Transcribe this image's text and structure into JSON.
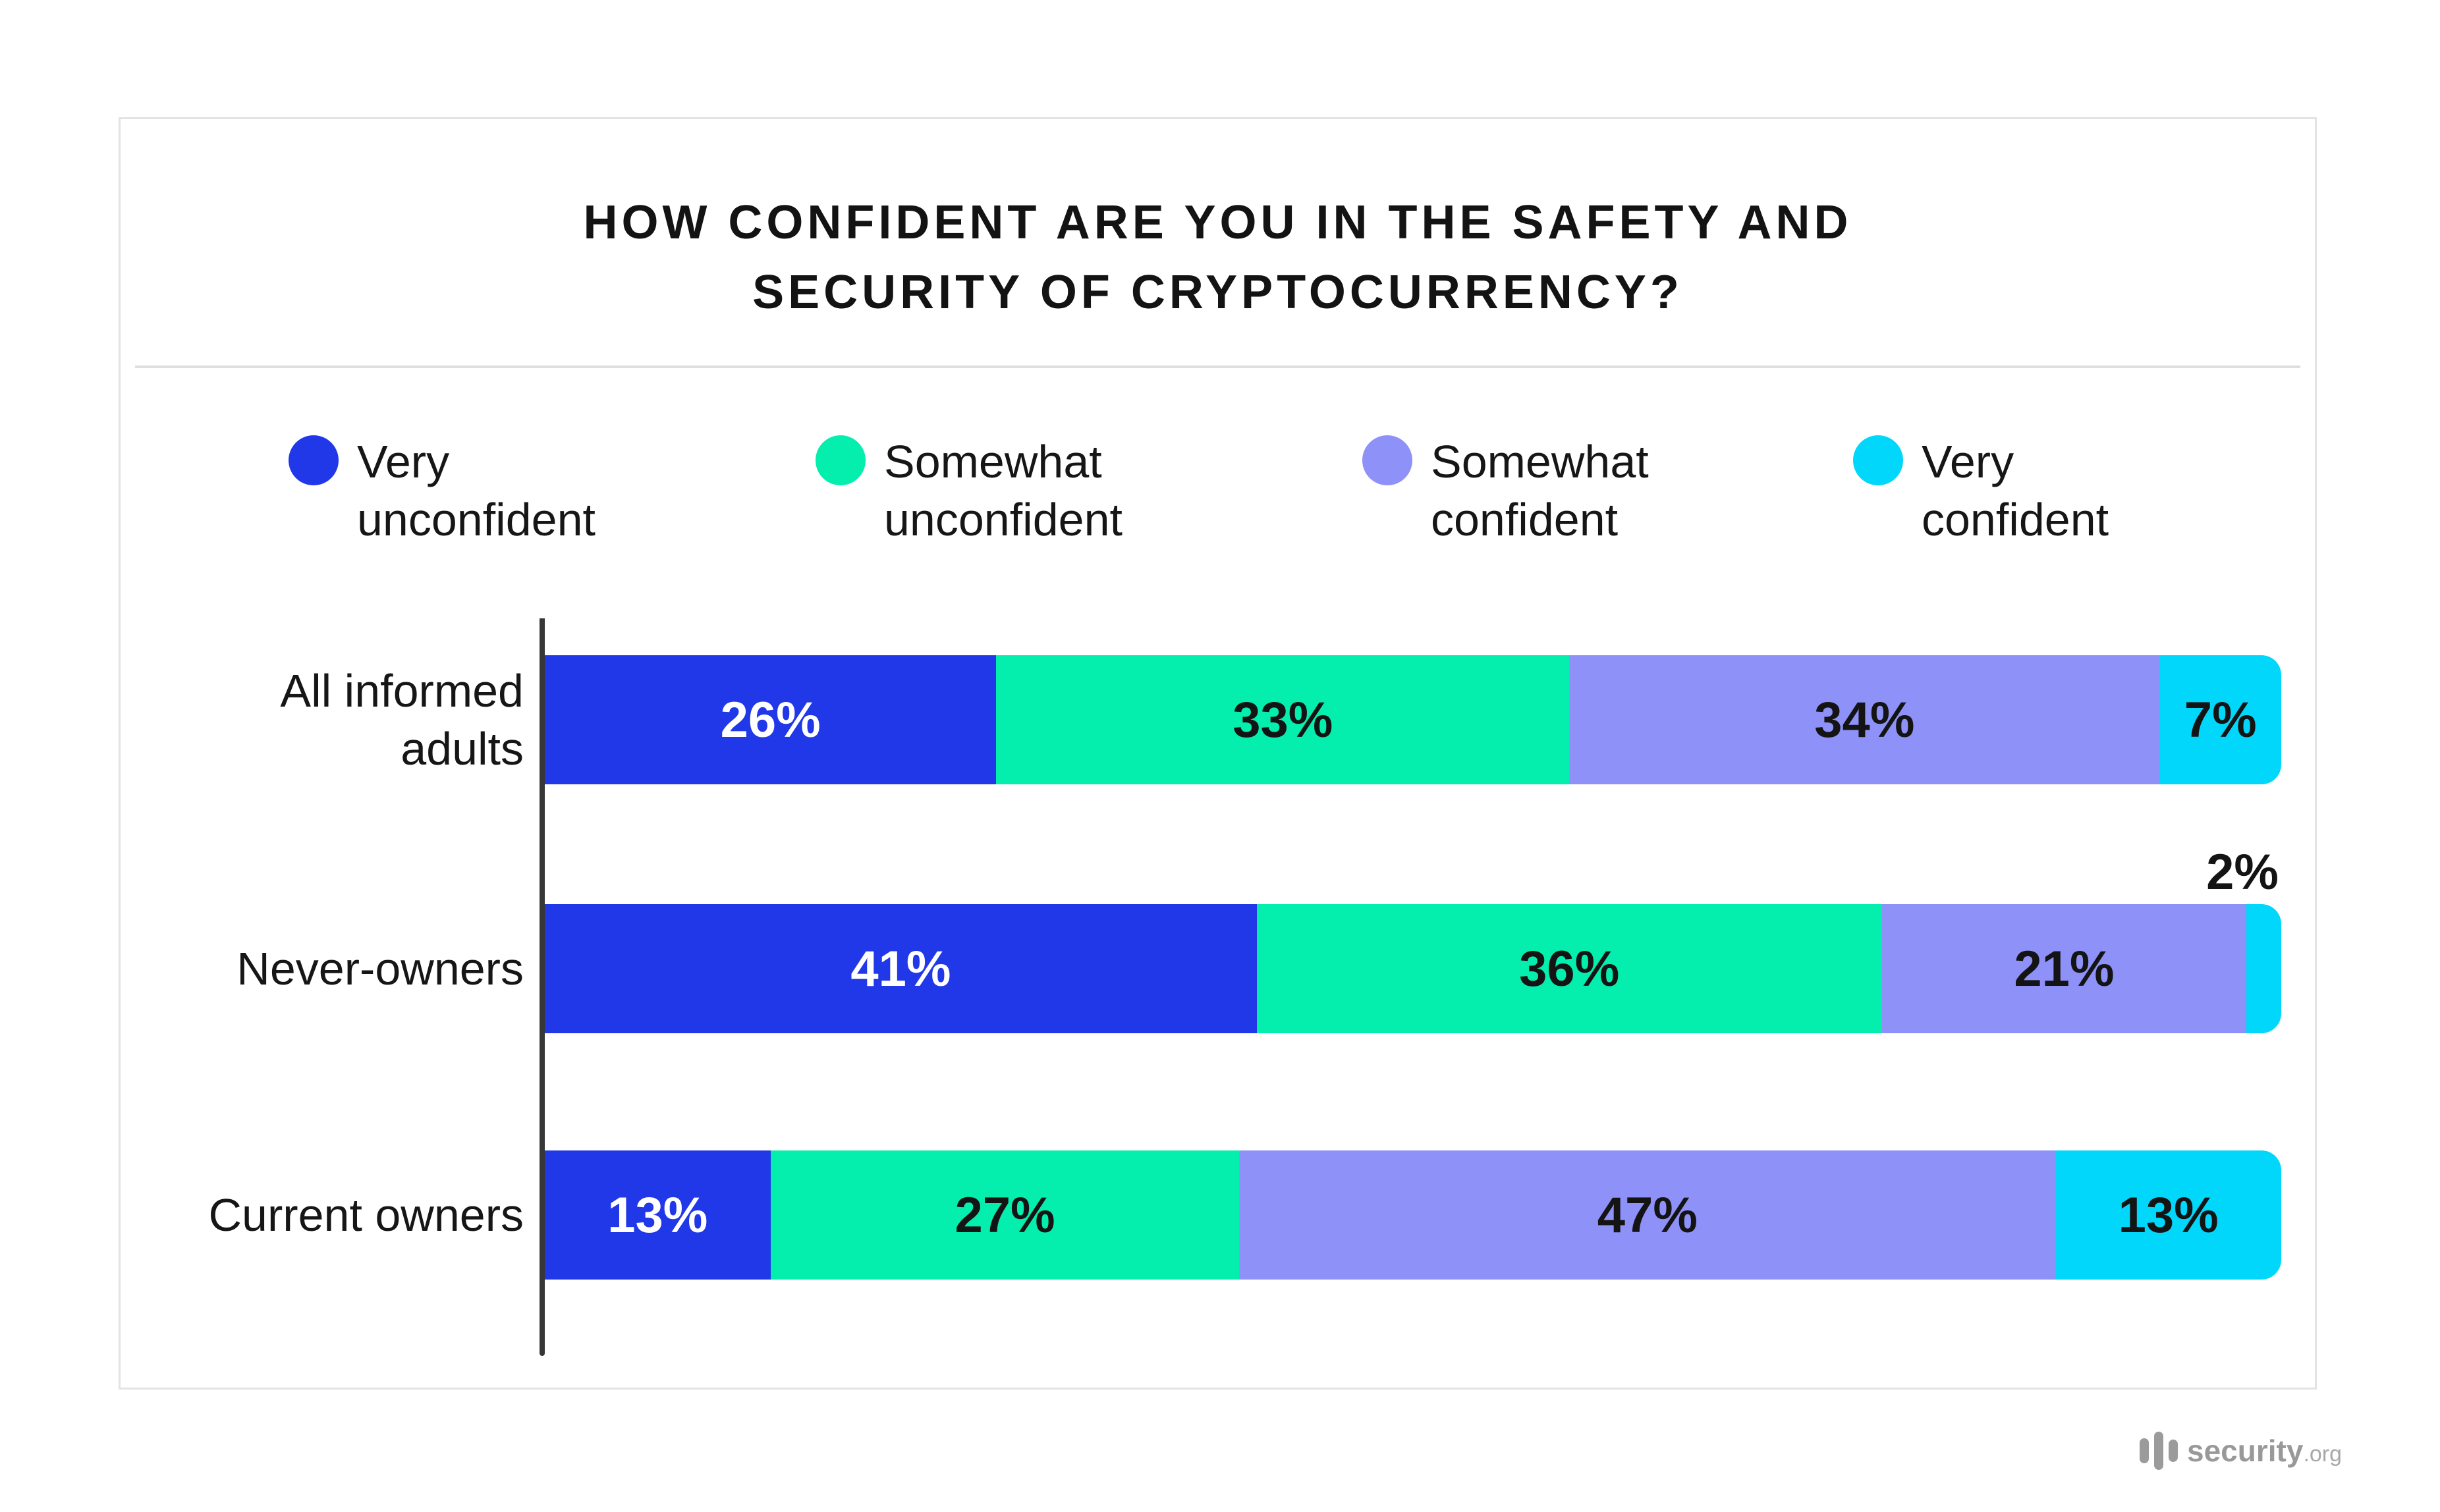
{
  "card": {
    "title_lines": [
      "HOW CONFIDENT ARE YOU IN THE SAFETY AND",
      "SECURITY OF CRYPTOCURRENCY?"
    ],
    "border_color": "#e3e3e3"
  },
  "chart_data": {
    "type": "bar",
    "stacked": true,
    "orientation": "horizontal",
    "title": "HOW CONFIDENT ARE YOU IN THE SAFETY AND SECURITY OF CRYPTOCURRENCY?",
    "unit": "%",
    "xlim": [
      0,
      100
    ],
    "grid": false,
    "legend_position": "top",
    "axis_color": "#373737",
    "categories": [
      "All informed adults",
      "Never-owners",
      "Current owners"
    ],
    "category_label_lines": [
      [
        "All informed",
        "adults"
      ],
      [
        "Never-owners"
      ],
      [
        "Current owners"
      ]
    ],
    "series": [
      {
        "name": "Very unconfident",
        "legend_lines": [
          "Very",
          "unconfident"
        ],
        "color": "#2038e8",
        "label_text_color": "#ffffff",
        "values": [
          26,
          41,
          13
        ]
      },
      {
        "name": "Somewhat unconfident",
        "legend_lines": [
          "Somewhat",
          "unconfident"
        ],
        "color": "#04eead",
        "label_text_color": "#141414",
        "values": [
          33,
          36,
          27
        ]
      },
      {
        "name": "Somewhat confident",
        "legend_lines": [
          "Somewhat",
          "confident"
        ],
        "color": "#8e91f7",
        "label_text_color": "#141414",
        "values": [
          34,
          21,
          47
        ]
      },
      {
        "name": "Very confident",
        "legend_lines": [
          "Very",
          "confident"
        ],
        "color": "#00d7fa",
        "label_text_color": "#141414",
        "values": [
          7,
          2,
          13
        ]
      }
    ],
    "outside_label_threshold": 5
  },
  "footer": {
    "brand_name": "security",
    "brand_tld": ".org"
  }
}
